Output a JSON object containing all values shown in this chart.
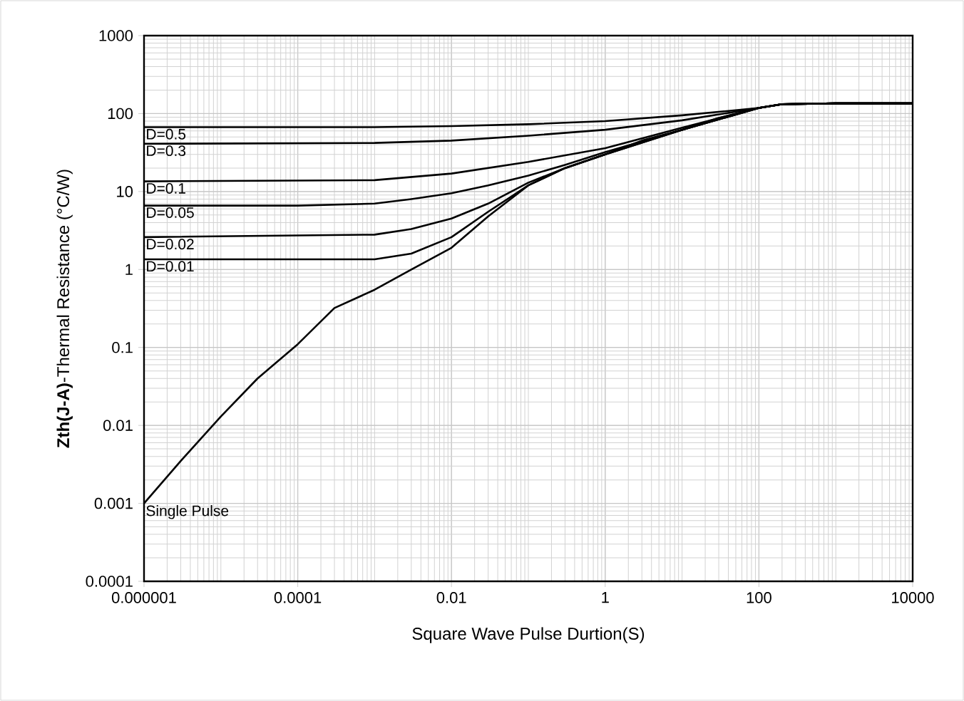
{
  "chart_data": {
    "type": "line",
    "xlabel": "Square Wave Pulse Durtion(S)",
    "ylabel": "**Zth(J-A)**-Thermal  Resistance (°C/W)",
    "log": "xy",
    "grid": true,
    "marker": "none",
    "line_style": "solid",
    "xlim": [
      1e-06,
      10000
    ],
    "ylim": [
      0.0001,
      1000
    ],
    "xticks": [
      {
        "value": 1e-06,
        "label": "0.000001"
      },
      {
        "value": 0.0001,
        "label": "0.0001"
      },
      {
        "value": 0.01,
        "label": "0.01"
      },
      {
        "value": 1,
        "label": "1"
      },
      {
        "value": 100,
        "label": "100"
      },
      {
        "value": 10000,
        "label": "10000"
      }
    ],
    "yticks": [
      {
        "value": 0.0001,
        "label": "0.0001"
      },
      {
        "value": 0.001,
        "label": "0.001"
      },
      {
        "value": 0.01,
        "label": "0.01"
      },
      {
        "value": 0.1,
        "label": "0.1"
      },
      {
        "value": 1,
        "label": "1"
      },
      {
        "value": 10,
        "label": "10"
      },
      {
        "value": 100,
        "label": "100"
      },
      {
        "value": 1000,
        "label": "1000"
      }
    ],
    "series": [
      {
        "name": "D=0.5",
        "color": "#000000",
        "x": [
          1e-06,
          0.001,
          0.01,
          0.1,
          1,
          10,
          100,
          200,
          1000,
          10000
        ],
        "values": [
          67,
          67,
          69,
          73,
          80,
          95,
          118,
          132,
          135,
          135
        ]
      },
      {
        "name": "D=0.3",
        "color": "#000000",
        "x": [
          1e-06,
          0.001,
          0.01,
          0.1,
          1,
          10,
          100,
          200,
          1000,
          10000
        ],
        "values": [
          41,
          42,
          45,
          52,
          62,
          82,
          118,
          132,
          135,
          135
        ]
      },
      {
        "name": "D=0.1",
        "color": "#000000",
        "x": [
          1e-06,
          0.001,
          0.01,
          0.1,
          1,
          10,
          100,
          200,
          1000,
          10000
        ],
        "values": [
          13.5,
          14,
          17,
          24,
          36,
          66,
          118,
          132,
          135,
          135
        ]
      },
      {
        "name": "D=0.05",
        "color": "#000000",
        "x": [
          1e-06,
          0.0001,
          0.001,
          0.003,
          0.01,
          0.03,
          0.1,
          0.3,
          1,
          10,
          100,
          200,
          1000,
          10000
        ],
        "values": [
          6.6,
          6.6,
          7,
          8,
          9.5,
          12,
          16,
          22,
          32,
          62,
          118,
          132,
          135,
          135
        ]
      },
      {
        "name": "D=0.02",
        "color": "#000000",
        "x": [
          1e-06,
          0.001,
          0.003,
          0.01,
          0.03,
          0.1,
          0.3,
          1,
          10,
          100,
          200,
          1000,
          10000
        ],
        "values": [
          2.6,
          2.8,
          3.3,
          4.5,
          7,
          13,
          20,
          30,
          62,
          118,
          132,
          135,
          135
        ]
      },
      {
        "name": "D=0.01",
        "color": "#000000",
        "x": [
          1e-06,
          0.001,
          0.003,
          0.01,
          0.03,
          0.1,
          0.3,
          1,
          10,
          100,
          200,
          1000,
          10000
        ],
        "values": [
          1.35,
          1.35,
          1.6,
          2.6,
          5.5,
          12,
          20,
          30,
          62,
          118,
          132,
          135,
          135
        ]
      },
      {
        "name": "Single Pulse",
        "color": "#000000",
        "x": [
          1e-06,
          3e-06,
          1e-05,
          3e-05,
          0.0001,
          0.0003,
          0.001,
          0.003,
          0.01,
          0.03,
          0.1,
          0.3,
          1,
          3,
          10,
          30,
          100,
          200,
          1000,
          10000
        ],
        "values": [
          0.001,
          0.0035,
          0.013,
          0.04,
          0.11,
          0.32,
          0.55,
          1.0,
          1.9,
          4.8,
          12,
          20,
          30,
          45,
          62,
          88,
          118,
          132,
          135,
          135
        ]
      }
    ]
  }
}
